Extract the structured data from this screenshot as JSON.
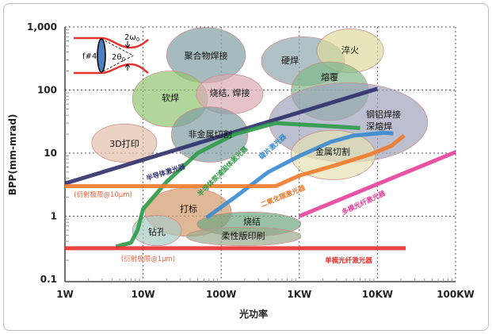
{
  "chart_data": {
    "type": "scatter",
    "title": "",
    "xlabel": "光功率",
    "ylabel": "BPP(mm-mrad)",
    "xscale": "log",
    "yscale": "log",
    "xlim": [
      1,
      100000
    ],
    "ylim": [
      0.1,
      1000
    ],
    "grid": true,
    "x_ticks": [
      {
        "v": 1,
        "label": "1W"
      },
      {
        "v": 10,
        "label": "10W"
      },
      {
        "v": 100,
        "label": "100W"
      },
      {
        "v": 1000,
        "label": "1KW"
      },
      {
        "v": 10000,
        "label": "10KW"
      },
      {
        "v": 100000,
        "label": "100KW"
      }
    ],
    "y_ticks": [
      {
        "v": 1000,
        "label": "1,000"
      },
      {
        "v": 100,
        "label": "100"
      },
      {
        "v": 10,
        "label": "10"
      },
      {
        "v": 1,
        "label": "1"
      },
      {
        "v": 0.1,
        "label": "0.1"
      }
    ],
    "regions": [
      {
        "label": "聚合物焊接",
        "x_range": [
          20,
          205
        ],
        "y_range": [
          130,
          980
        ],
        "color": "#7f9ea3"
      },
      {
        "label": "软焊",
        "x_range": [
          7.3,
          67
        ],
        "y_range": [
          26,
          200
        ],
        "color": "#8fc66d"
      },
      {
        "label": "烧结, 焊接",
        "x_range": [
          48,
          343
        ],
        "y_range": [
          42,
          178
        ],
        "color": "#d9aab2"
      },
      {
        "label": "非金属切割",
        "x_range": [
          23,
          220
        ],
        "y_range": [
          7.2,
          54
        ],
        "color": "#7f9ea3"
      },
      {
        "label": "3D打印",
        "x_range": [
          2.2,
          15
        ],
        "y_range": [
          7.2,
          29
        ],
        "color": "#e2bfa8"
      },
      {
        "label": "硬焊",
        "x_range": [
          327,
          3800
        ],
        "y_range": [
          118,
          700
        ],
        "color": "#8ea7ad"
      },
      {
        "label": "淬火",
        "x_range": [
          1680,
          12000
        ],
        "y_range": [
          190,
          930
        ],
        "color": "#dcdb9c"
      },
      {
        "label": "熔覆",
        "x_range": [
          790,
          7700
        ],
        "y_range": [
          33,
          280
        ],
        "color": "#7fb88a"
      },
      {
        "label": "钢铝焊接\n深熔焊",
        "x_range": [
          410,
          44000
        ],
        "y_range": [
          7.2,
          130
        ],
        "color": "#9ea4ba"
      },
      {
        "label": "金属切割",
        "x_range": [
          780,
          9400
        ],
        "y_range": [
          3.8,
          23
        ],
        "color": "#e6e3b4"
      },
      {
        "label": "打标",
        "x_range": [
          10.6,
          135
        ],
        "y_range": [
          0.48,
          2.8
        ],
        "color": "#d19a6a"
      },
      {
        "label": "钻孔",
        "x_range": [
          7.3,
          31
        ],
        "y_range": [
          0.34,
          1.03
        ],
        "color": "#a8cac4"
      },
      {
        "label": "烧结",
        "x_range": [
          49,
          1050
        ],
        "y_range": [
          0.48,
          1.16
        ],
        "color": "#6fa580"
      },
      {
        "label": "柔性版印刷",
        "x_range": [
          36,
          1050
        ],
        "y_range": [
          0.34,
          0.67
        ],
        "color": "#9aa98e"
      }
    ],
    "series": [
      {
        "name": "半导体激光器",
        "color": "#2f2f6b",
        "points": [
          [
            1,
            3.3
          ],
          [
            10000,
            105
          ]
        ]
      },
      {
        "name": "半导体泵浦固体激光器",
        "color": "#2e9a48",
        "points": [
          [
            4.5,
            0.33
          ],
          [
            7,
            0.38
          ],
          [
            8.5,
            0.6
          ],
          [
            10,
            1.3
          ],
          [
            20,
            3.5
          ],
          [
            50,
            10
          ],
          [
            150,
            20
          ],
          [
            500,
            30
          ],
          [
            6000,
            25
          ]
        ]
      },
      {
        "name": "碟片激光器",
        "color": "#3a8ad0",
        "points": [
          [
            65,
            0.95
          ],
          [
            150,
            2
          ],
          [
            400,
            5
          ],
          [
            1000,
            9
          ],
          [
            2500,
            15
          ],
          [
            5000,
            19
          ],
          [
            12000,
            21
          ],
          [
            16000,
            20.5
          ]
        ]
      },
      {
        "name": "二氧化碳激光器",
        "color": "#f07a2a",
        "points": [
          [
            1,
            3
          ],
          [
            500,
            3
          ],
          [
            1000,
            4.4
          ],
          [
            3000,
            6.5
          ],
          [
            8000,
            9.5
          ],
          [
            15000,
            13
          ],
          [
            22000,
            19
          ]
        ]
      },
      {
        "name": "单模光纤激光器",
        "color": "#e8302e",
        "points": [
          [
            1,
            0.31
          ],
          [
            23000,
            0.31
          ]
        ]
      },
      {
        "name": "多模光纤激光器",
        "color": "#e8409a",
        "points": [
          [
            1000,
            1.0
          ],
          [
            100000,
            10.4
          ]
        ]
      }
    ],
    "annotations": [
      {
        "text": "(衍射极限@10μm)",
        "color": "#e8603a"
      },
      {
        "text": "(衍射极限@1μm)",
        "color": "#e8603a"
      }
    ],
    "inset": {
      "lens_label": "f#4",
      "waist_label": "2ω0",
      "angle_label": "2θ0"
    }
  }
}
